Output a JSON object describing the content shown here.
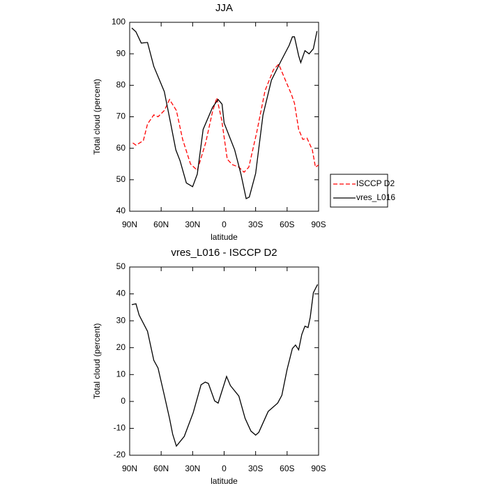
{
  "chart_data": [
    {
      "type": "line",
      "title": "JJA",
      "xlabel": "latitude",
      "ylabel": "Total cloud (percent)",
      "xlim": [
        90,
        -90
      ],
      "xticks": [
        {
          "value": 90,
          "label": "90N"
        },
        {
          "value": 60,
          "label": "60N"
        },
        {
          "value": 30,
          "label": "30N"
        },
        0,
        {
          "value": -30,
          "label": "30S"
        },
        {
          "value": -60,
          "label": "60S"
        },
        {
          "value": -90,
          "label": "90S"
        }
      ],
      "ylim": [
        40,
        100
      ],
      "yticks": [
        40,
        50,
        60,
        70,
        80,
        90,
        100
      ],
      "legend": "right",
      "series": [
        {
          "name": "ISCCP D2",
          "color": "#ff0000",
          "dash": true,
          "x": [
            87,
            84,
            77,
            73,
            67,
            63,
            57,
            52,
            45.5,
            39.5,
            32,
            25.6,
            17.6,
            11,
            7,
            2.3,
            -3,
            -8,
            -14,
            -19,
            -23.5,
            -31,
            -39,
            -47,
            -52,
            -57,
            -64,
            -67,
            -71,
            -75,
            -79,
            -84,
            -87,
            -90
          ],
          "values": [
            61.7,
            61,
            62.4,
            67.7,
            70.6,
            70,
            72,
            75.5,
            72,
            62.8,
            55,
            53,
            61.7,
            71.7,
            76,
            69,
            56.5,
            54.8,
            54,
            52.4,
            54,
            65,
            78.3,
            85,
            86.7,
            82.7,
            77.2,
            74.3,
            66,
            62.8,
            63.2,
            59.5,
            54,
            54.7
          ]
        },
        {
          "name": "vres_L016",
          "color": "#000000",
          "dash": false,
          "x": [
            88,
            84,
            79,
            73,
            67,
            57,
            51,
            46,
            42,
            36,
            30,
            25.6,
            20,
            11,
            5.7,
            2,
            0,
            -10,
            -16,
            -21,
            -24,
            -30,
            -37,
            -45,
            -54,
            -62,
            -65,
            -67,
            -71,
            -73,
            -77,
            -81,
            -85,
            -88.5
          ],
          "values": [
            98.2,
            97,
            93.4,
            93.6,
            86,
            78,
            68,
            59.5,
            56,
            49,
            47.8,
            51.8,
            66,
            73,
            75.5,
            74,
            68,
            59.5,
            51.8,
            44,
            44.5,
            52,
            70.5,
            81.6,
            87.6,
            92.7,
            95.4,
            95.4,
            89.4,
            87.2,
            91,
            90,
            91.6,
            97.2
          ]
        }
      ]
    },
    {
      "type": "line",
      "title": "vres_L016 - ISCCP D2",
      "xlabel": "latitude",
      "ylabel": "Total cloud (percent)",
      "xlim": [
        90,
        -90
      ],
      "xticks": [
        {
          "value": 90,
          "label": "90N"
        },
        {
          "value": 60,
          "label": "60N"
        },
        {
          "value": 30,
          "label": "30N"
        },
        0,
        {
          "value": -30,
          "label": "30S"
        },
        {
          "value": -60,
          "label": "60S"
        },
        {
          "value": -90,
          "label": "90S"
        }
      ],
      "ylim": [
        -20,
        50
      ],
      "yticks": [
        -20,
        -10,
        0,
        10,
        20,
        30,
        40,
        50
      ],
      "series": [
        {
          "color": "#000000",
          "dash": false,
          "x": [
            88,
            84,
            81,
            73,
            67,
            63,
            57,
            52,
            49,
            45.5,
            38,
            29.5,
            22,
            18,
            15,
            9,
            5.7,
            -2.3,
            -6,
            -14,
            -20,
            -25.5,
            -30,
            -33,
            -42,
            -51,
            -55,
            -60,
            -65,
            -68,
            -71,
            -74,
            -77,
            -80,
            -82,
            -85,
            -89
          ],
          "values": [
            36,
            36.3,
            32.1,
            26.1,
            15.3,
            12.4,
            2.3,
            -6.3,
            -12.2,
            -16.6,
            -13,
            -4.2,
            6.2,
            7.2,
            6.7,
            0.2,
            -0.6,
            9.3,
            5.9,
            2,
            -6.3,
            -11,
            -12.5,
            -11.5,
            -3.7,
            -0.6,
            2.3,
            11.9,
            19.7,
            21,
            19.2,
            24.9,
            28,
            27.5,
            31.3,
            40.4,
            43.5
          ]
        }
      ]
    }
  ]
}
